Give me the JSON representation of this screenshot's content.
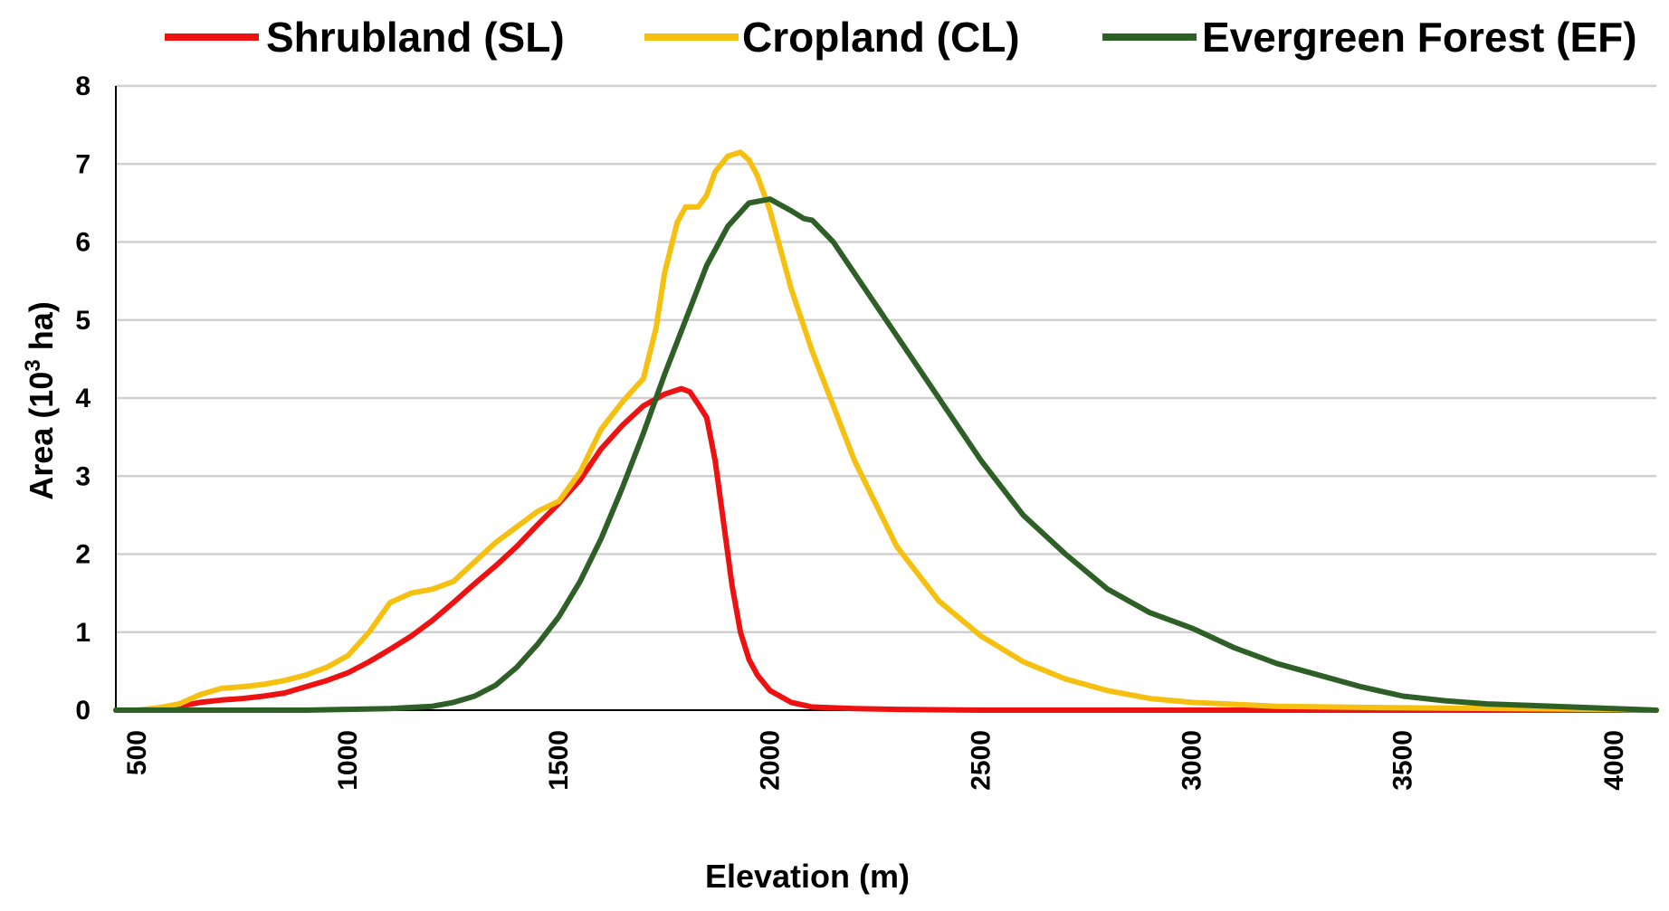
{
  "chart_data": {
    "type": "line",
    "title": "",
    "xlabel": "Elevation (m)",
    "ylabel_main": "Area (10",
    "ylabel_sup": "3",
    "ylabel_tail": " ha)",
    "xlim": [
      450,
      4100
    ],
    "ylim": [
      0,
      8
    ],
    "x_ticks": [
      500,
      1000,
      1500,
      2000,
      2500,
      3000,
      3500,
      4000
    ],
    "x_tick_labels": [
      "500",
      "1000",
      "1500",
      "2000",
      "2500",
      "3000",
      "3500",
      "4000"
    ],
    "y_ticks": [
      0,
      1,
      2,
      3,
      4,
      5,
      6,
      7,
      8
    ],
    "y_tick_labels": [
      "0",
      "1",
      "2",
      "3",
      "4",
      "5",
      "6",
      "7",
      "8"
    ],
    "grid": true,
    "legend_position": "top",
    "series": [
      {
        "name": "Shrubland (SL)",
        "color": "#ee1111",
        "x": [
          450,
          500,
          550,
          600,
          650,
          700,
          750,
          800,
          850,
          900,
          950,
          1000,
          1050,
          1100,
          1150,
          1200,
          1250,
          1300,
          1350,
          1400,
          1450,
          1500,
          1550,
          1600,
          1650,
          1700,
          1750,
          1790,
          1810,
          1830,
          1850,
          1870,
          1890,
          1910,
          1930,
          1950,
          1970,
          2000,
          2050,
          2100,
          2200,
          2300,
          2500,
          3000,
          3500,
          4000,
          4100
        ],
        "values": [
          0,
          0,
          0.02,
          0.05,
          0.1,
          0.13,
          0.15,
          0.18,
          0.22,
          0.3,
          0.38,
          0.48,
          0.62,
          0.78,
          0.95,
          1.15,
          1.38,
          1.62,
          1.85,
          2.1,
          2.38,
          2.65,
          2.95,
          3.35,
          3.65,
          3.9,
          4.05,
          4.12,
          4.08,
          3.92,
          3.75,
          3.2,
          2.4,
          1.6,
          1.0,
          0.65,
          0.45,
          0.25,
          0.1,
          0.04,
          0.02,
          0.01,
          0,
          0,
          0,
          0,
          0
        ]
      },
      {
        "name": "Cropland (CL)",
        "color": "#f5c010",
        "x": [
          450,
          500,
          550,
          600,
          650,
          700,
          750,
          800,
          850,
          900,
          950,
          1000,
          1050,
          1100,
          1150,
          1200,
          1250,
          1300,
          1350,
          1400,
          1450,
          1500,
          1550,
          1600,
          1650,
          1700,
          1730,
          1750,
          1780,
          1800,
          1830,
          1850,
          1870,
          1900,
          1930,
          1950,
          1970,
          2000,
          2050,
          2100,
          2200,
          2300,
          2400,
          2500,
          2600,
          2700,
          2800,
          2900,
          3000,
          3200,
          3500,
          4000,
          4100
        ],
        "values": [
          0,
          0,
          0.03,
          0.08,
          0.2,
          0.28,
          0.3,
          0.33,
          0.38,
          0.45,
          0.55,
          0.7,
          1.0,
          1.38,
          1.5,
          1.55,
          1.65,
          1.9,
          2.15,
          2.35,
          2.55,
          2.68,
          3.05,
          3.6,
          3.95,
          4.25,
          4.9,
          5.6,
          6.25,
          6.45,
          6.45,
          6.6,
          6.9,
          7.1,
          7.15,
          7.05,
          6.85,
          6.4,
          5.4,
          4.6,
          3.2,
          2.1,
          1.4,
          0.95,
          0.62,
          0.4,
          0.25,
          0.15,
          0.1,
          0.05,
          0.03,
          0.01,
          0
        ]
      },
      {
        "name": "Evergreen Forest (EF)",
        "color": "#2e5f26",
        "x": [
          450,
          500,
          600,
          700,
          800,
          900,
          1000,
          1100,
          1200,
          1250,
          1300,
          1350,
          1400,
          1450,
          1500,
          1550,
          1600,
          1650,
          1700,
          1750,
          1800,
          1850,
          1900,
          1950,
          2000,
          2050,
          2080,
          2100,
          2150,
          2200,
          2300,
          2400,
          2500,
          2600,
          2700,
          2800,
          2900,
          3000,
          3100,
          3200,
          3300,
          3400,
          3500,
          3600,
          3700,
          3800,
          3900,
          4000,
          4100
        ],
        "values": [
          0,
          0,
          0,
          0,
          0,
          0,
          0.01,
          0.02,
          0.05,
          0.1,
          0.18,
          0.32,
          0.55,
          0.85,
          1.2,
          1.65,
          2.2,
          2.85,
          3.55,
          4.3,
          5.0,
          5.7,
          6.2,
          6.5,
          6.55,
          6.4,
          6.3,
          6.28,
          6.0,
          5.6,
          4.8,
          4.0,
          3.2,
          2.5,
          2.0,
          1.55,
          1.25,
          1.05,
          0.8,
          0.6,
          0.45,
          0.3,
          0.18,
          0.12,
          0.08,
          0.06,
          0.04,
          0.02,
          0
        ]
      }
    ]
  }
}
